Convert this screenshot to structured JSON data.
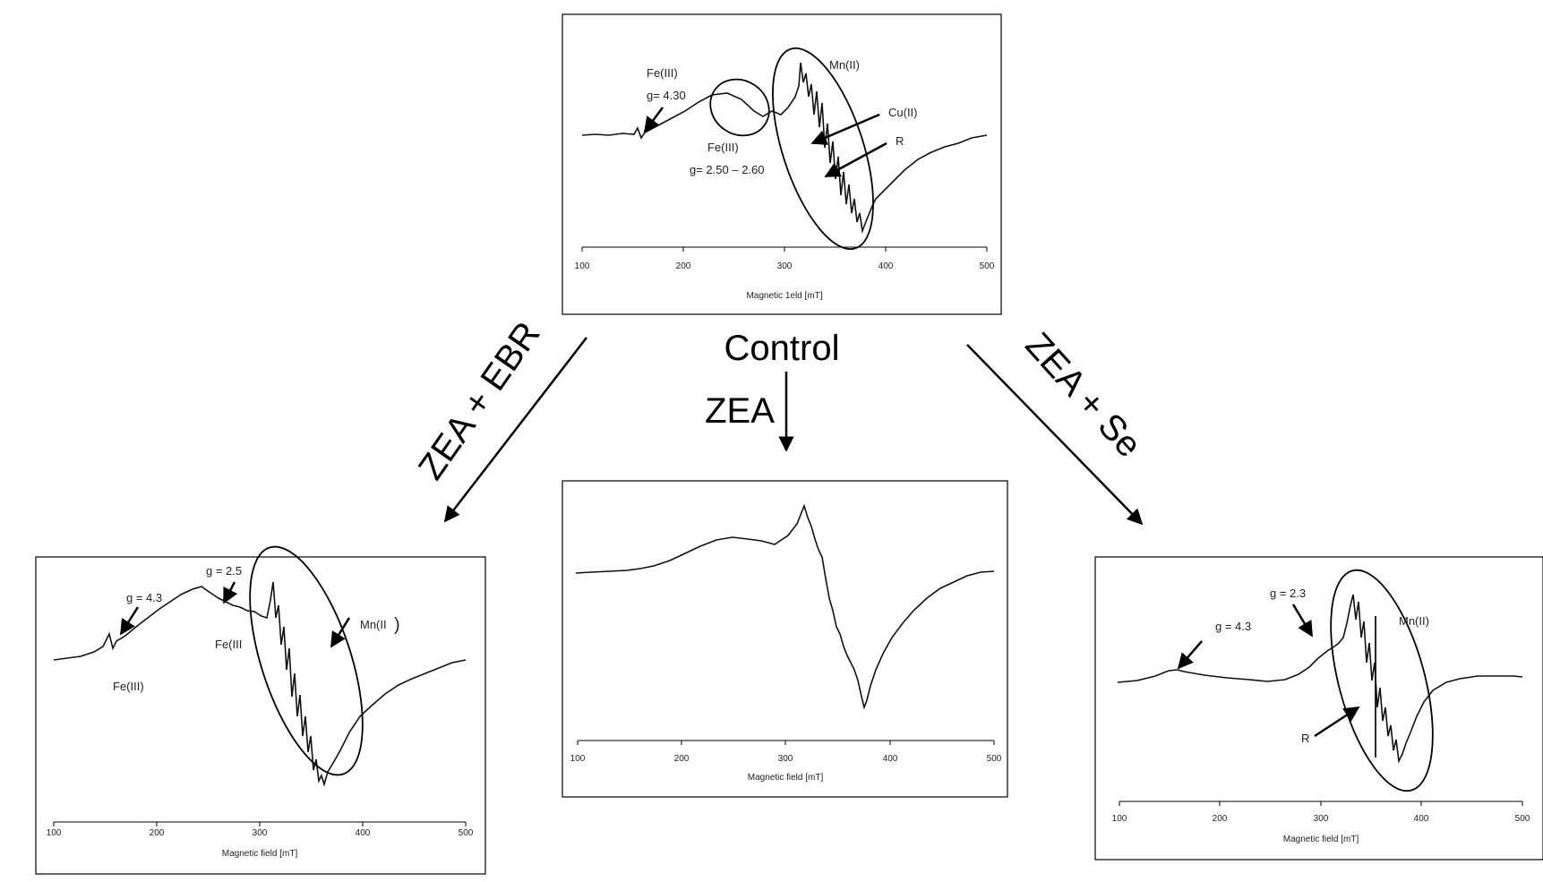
{
  "center_label": "Control",
  "arrows": {
    "left": "ZEA + EBR",
    "middle": "ZEA",
    "right": "ZEA + Se"
  },
  "panels": [
    {
      "id": "control",
      "xlabel": "Magnetic 1eld [mT]",
      "ticks": [
        "100",
        "200",
        "300",
        "400",
        "500"
      ],
      "annotations": {
        "fe1_species": "Fe(III)",
        "fe1_g": "g= 4.30",
        "fe2_species": "Fe(III)",
        "fe2_g": "g= 2.50 – 2.60",
        "mn": "Mn(II)",
        "cu": "Cu(II)",
        "r": "R"
      }
    },
    {
      "id": "zea",
      "xlabel": "Magnetic field [mT]",
      "ticks": [
        "100",
        "200",
        "300",
        "400",
        "500"
      ],
      "annotations": {}
    },
    {
      "id": "zea-ebr",
      "xlabel": "Magnetic field [mT]",
      "ticks": [
        "100",
        "200",
        "300",
        "400",
        "500"
      ],
      "annotations": {
        "g43": "g = 4.3",
        "g25": "g = 2.5",
        "fe_a": "Fe(III",
        "fe_b": "Fe(III)",
        "mn": "Mn(II",
        "mn_paren": ")"
      }
    },
    {
      "id": "zea-se",
      "xlabel": "Magnetic field [mT]",
      "ticks": [
        "100",
        "200",
        "300",
        "400",
        "500"
      ],
      "annotations": {
        "g23": "g = 2.3",
        "g43": "g = 4.3",
        "mn": "Mn(II)",
        "r": "R"
      }
    }
  ]
}
